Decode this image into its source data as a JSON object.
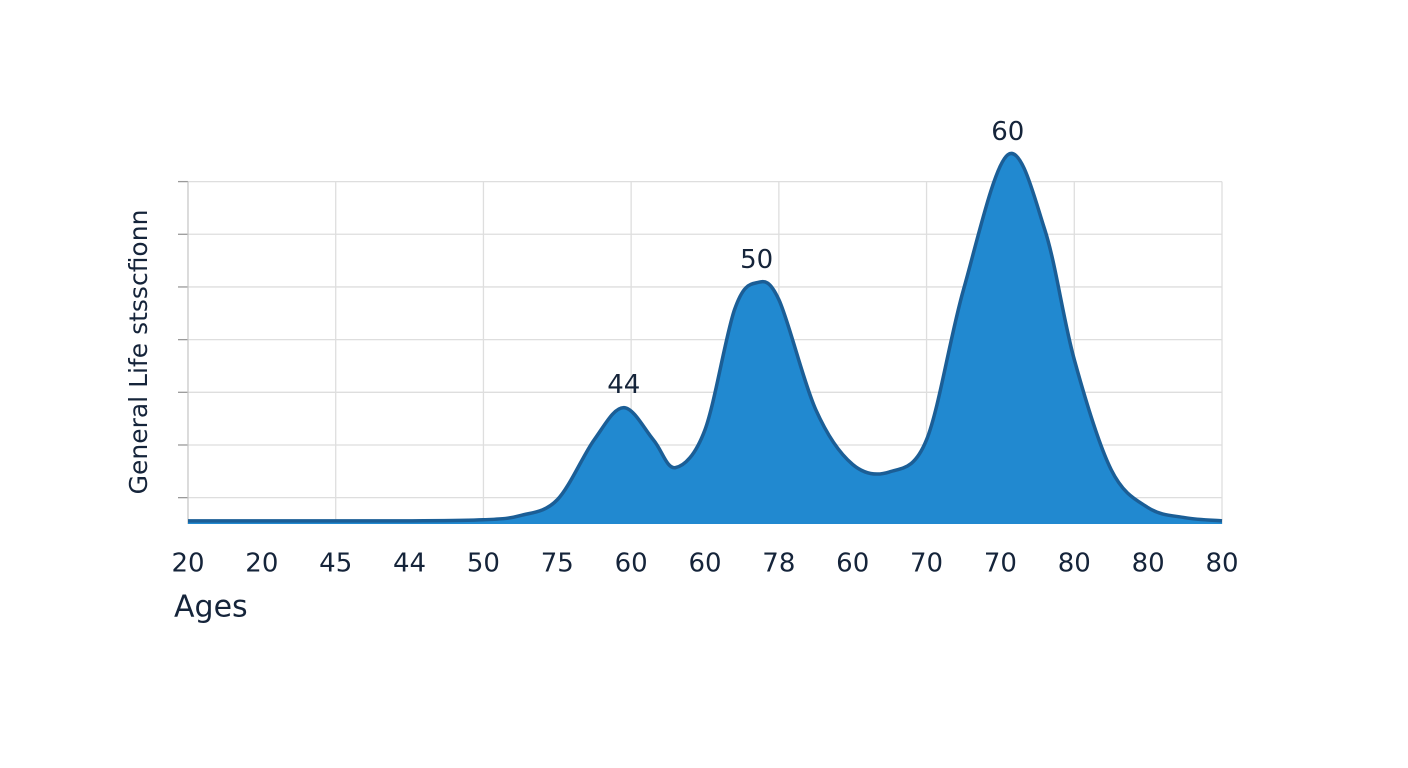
{
  "chart_data": {
    "type": "area",
    "y_label": "General Life stsscfionn",
    "x_label": "Ages",
    "x": [
      0,
      1,
      2,
      3,
      4,
      4.5,
      5,
      5.5,
      5.9,
      6.3,
      6.6,
      7.0,
      7.4,
      7.7,
      8.0,
      8.5,
      9.0,
      9.5,
      10.0,
      10.5,
      11.1,
      11.6,
      12.0,
      12.5,
      13.0,
      13.5,
      14
    ],
    "values": [
      5.6,
      5.6,
      5.6,
      5.6,
      5.8,
      6.6,
      9.6,
      21,
      27.1,
      21,
      15.7,
      22.9,
      45.7,
      50.8,
      47.6,
      26.7,
      16.3,
      14.9,
      21,
      49.5,
      75.1,
      60.9,
      36.2,
      15.3,
      8.1,
      6.2,
      5.6
    ],
    "color": "#2189d0",
    "edge_color": "#1b5e96",
    "xlim": [
      0,
      14
    ],
    "xticks": [
      {
        "value": 0,
        "label": "20"
      },
      {
        "value": 1,
        "label": "20"
      },
      {
        "value": 2,
        "label": "45"
      },
      {
        "value": 3,
        "label": "44"
      },
      {
        "value": 4,
        "label": "50"
      },
      {
        "value": 5,
        "label": "75"
      },
      {
        "value": 6,
        "label": "60"
      },
      {
        "value": 7,
        "label": "60"
      },
      {
        "value": 8,
        "label": "78"
      },
      {
        "value": 9,
        "label": "60"
      },
      {
        "value": 10,
        "label": "70"
      },
      {
        "value": 11,
        "label": "70"
      },
      {
        "value": 12,
        "label": "80"
      },
      {
        "value": 13,
        "label": "80"
      },
      {
        "value": 14,
        "label": "80"
      }
    ],
    "ylim": [
      5,
      76
    ],
    "yticks": [
      10,
      20,
      30,
      40,
      50,
      60,
      70
    ],
    "grid": true,
    "annotations": [
      {
        "text": "44",
        "x": 5.9
      },
      {
        "text": "50",
        "x": 7.7
      },
      {
        "text": "60",
        "x": 11.1
      }
    ]
  }
}
